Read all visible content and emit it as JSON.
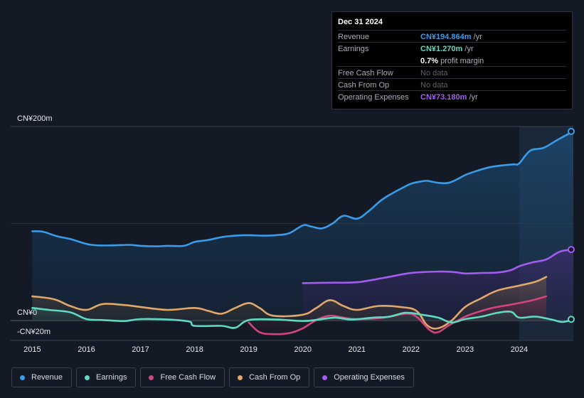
{
  "tooltip": {
    "date": "Dec 31 2024",
    "rows": [
      {
        "label": "Revenue",
        "value": "CN¥194.864m",
        "suffix": " /yr",
        "color": "#3b9be8"
      },
      {
        "label": "Earnings",
        "value": "CN¥1.270m",
        "suffix": " /yr",
        "color": "#5fd9c2"
      },
      {
        "label": "",
        "value": "0.7%",
        "suffix": " profit margin",
        "color": "#ffffff"
      },
      {
        "label": "Free Cash Flow",
        "value": "No data",
        "suffix": "",
        "color": "#5d636c"
      },
      {
        "label": "Cash From Op",
        "value": "No data",
        "suffix": "",
        "color": "#5d636c"
      },
      {
        "label": "Operating Expenses",
        "value": "CN¥73.180m",
        "suffix": " /yr",
        "color": "#a35cf0"
      }
    ]
  },
  "legend": [
    {
      "label": "Revenue",
      "color": "#3b9be8"
    },
    {
      "label": "Earnings",
      "color": "#5fd9c2"
    },
    {
      "label": "Free Cash Flow",
      "color": "#d2457c"
    },
    {
      "label": "Cash From Op",
      "color": "#e0a86a"
    },
    {
      "label": "Operating Expenses",
      "color": "#a35cf0"
    }
  ],
  "chart_data": {
    "type": "area",
    "title": "",
    "xlabel": "",
    "ylabel": "",
    "currency": "CN¥",
    "y_tick_labels": [
      "CN¥200m",
      "CN¥0",
      "-CN¥20m"
    ],
    "ylim": [
      -20,
      200
    ],
    "xlim": [
      2014.6,
      2025.0
    ],
    "x_tick_labels": [
      "2015",
      "2016",
      "2017",
      "2018",
      "2019",
      "2020",
      "2021",
      "2022",
      "2023",
      "2024"
    ],
    "x_ticks": [
      2015,
      2016,
      2017,
      2018,
      2019,
      2020,
      2021,
      2022,
      2023,
      2024
    ],
    "highlight_from": 2024.0,
    "series": [
      {
        "name": "Revenue",
        "color": "#3b9be8",
        "points": [
          [
            2015.0,
            92
          ],
          [
            2015.2,
            91.5
          ],
          [
            2015.45,
            87
          ],
          [
            2015.7,
            84
          ],
          [
            2016.0,
            79
          ],
          [
            2016.2,
            77.5
          ],
          [
            2016.5,
            77.5
          ],
          [
            2016.8,
            78
          ],
          [
            2017.0,
            77
          ],
          [
            2017.3,
            76.5
          ],
          [
            2017.5,
            77
          ],
          [
            2017.8,
            77
          ],
          [
            2018.0,
            81
          ],
          [
            2018.25,
            83
          ],
          [
            2018.5,
            86
          ],
          [
            2018.75,
            87.5
          ],
          [
            2019.0,
            88
          ],
          [
            2019.25,
            87.5
          ],
          [
            2019.5,
            88
          ],
          [
            2019.75,
            90
          ],
          [
            2020.0,
            98
          ],
          [
            2020.15,
            97
          ],
          [
            2020.35,
            95
          ],
          [
            2020.55,
            100
          ],
          [
            2020.75,
            108
          ],
          [
            2021.0,
            105
          ],
          [
            2021.2,
            112
          ],
          [
            2021.45,
            124
          ],
          [
            2021.65,
            131
          ],
          [
            2021.85,
            137
          ],
          [
            2022.0,
            141
          ],
          [
            2022.15,
            143
          ],
          [
            2022.3,
            144
          ],
          [
            2022.5,
            142
          ],
          [
            2022.7,
            142
          ],
          [
            2022.9,
            147
          ],
          [
            2023.0,
            150
          ],
          [
            2023.2,
            154
          ],
          [
            2023.45,
            158
          ],
          [
            2023.7,
            160
          ],
          [
            2023.9,
            161
          ],
          [
            2024.0,
            162
          ],
          [
            2024.2,
            175
          ],
          [
            2024.45,
            178
          ],
          [
            2024.7,
            186
          ],
          [
            2025.0,
            195
          ]
        ]
      },
      {
        "name": "Earnings",
        "color": "#5fd9c2",
        "points": [
          [
            2015.0,
            13
          ],
          [
            2015.3,
            11
          ],
          [
            2015.7,
            8.5
          ],
          [
            2016.0,
            1.5
          ],
          [
            2016.3,
            0.5
          ],
          [
            2016.7,
            -0.5
          ],
          [
            2017.0,
            1.5
          ],
          [
            2017.5,
            1
          ],
          [
            2017.9,
            -1
          ],
          [
            2018.0,
            -5.5
          ],
          [
            2018.5,
            -5.5
          ],
          [
            2018.75,
            -7.5
          ],
          [
            2019.0,
            0.5
          ],
          [
            2019.5,
            1
          ],
          [
            2020.0,
            -0.5
          ],
          [
            2020.3,
            1
          ],
          [
            2020.6,
            3
          ],
          [
            2020.9,
            1
          ],
          [
            2021.3,
            3
          ],
          [
            2021.6,
            4
          ],
          [
            2021.9,
            8
          ],
          [
            2022.2,
            6
          ],
          [
            2022.5,
            3
          ],
          [
            2022.75,
            -2
          ],
          [
            2023.0,
            1.5
          ],
          [
            2023.3,
            4
          ],
          [
            2023.6,
            8
          ],
          [
            2023.85,
            9
          ],
          [
            2024.0,
            3
          ],
          [
            2024.3,
            4
          ],
          [
            2024.6,
            1
          ],
          [
            2024.8,
            -1.5
          ],
          [
            2025.0,
            1.3
          ]
        ]
      },
      {
        "name": "Free Cash Flow",
        "color": "#d2457c",
        "points": [
          [
            2019.0,
            -2
          ],
          [
            2019.2,
            -12
          ],
          [
            2019.45,
            -14
          ],
          [
            2019.75,
            -13
          ],
          [
            2020.0,
            -8
          ],
          [
            2020.25,
            0.5
          ],
          [
            2020.5,
            5
          ],
          [
            2020.75,
            3
          ],
          [
            2021.0,
            1.5
          ],
          [
            2021.5,
            3
          ],
          [
            2021.9,
            7
          ],
          [
            2022.1,
            4
          ],
          [
            2022.35,
            -10
          ],
          [
            2022.5,
            -12
          ],
          [
            2022.7,
            -5
          ],
          [
            2023.0,
            4
          ],
          [
            2023.25,
            9
          ],
          [
            2023.5,
            13
          ],
          [
            2023.8,
            16
          ],
          [
            2024.0,
            18
          ],
          [
            2024.25,
            21
          ],
          [
            2024.5,
            25
          ]
        ]
      },
      {
        "name": "Cash From Op",
        "color": "#e0a86a",
        "points": [
          [
            2015.0,
            25
          ],
          [
            2015.4,
            22
          ],
          [
            2015.7,
            15
          ],
          [
            2016.0,
            11
          ],
          [
            2016.3,
            17
          ],
          [
            2016.7,
            16
          ],
          [
            2017.0,
            14
          ],
          [
            2017.5,
            11
          ],
          [
            2018.0,
            13
          ],
          [
            2018.25,
            10
          ],
          [
            2018.5,
            7
          ],
          [
            2018.75,
            13
          ],
          [
            2019.0,
            18
          ],
          [
            2019.2,
            13
          ],
          [
            2019.45,
            5
          ],
          [
            2020.0,
            6
          ],
          [
            2020.25,
            13
          ],
          [
            2020.5,
            21
          ],
          [
            2020.75,
            15
          ],
          [
            2021.0,
            11
          ],
          [
            2021.4,
            15
          ],
          [
            2021.8,
            14
          ],
          [
            2022.1,
            10
          ],
          [
            2022.3,
            -5
          ],
          [
            2022.5,
            -8
          ],
          [
            2022.75,
            0
          ],
          [
            2023.0,
            14
          ],
          [
            2023.3,
            23
          ],
          [
            2023.6,
            31
          ],
          [
            2024.0,
            36
          ],
          [
            2024.3,
            40
          ],
          [
            2024.5,
            45
          ]
        ]
      },
      {
        "name": "Operating Expenses",
        "color": "#a35cf0",
        "points": [
          [
            2020.0,
            38.5
          ],
          [
            2020.5,
            39
          ],
          [
            2021.0,
            39.5
          ],
          [
            2021.5,
            44
          ],
          [
            2022.0,
            49
          ],
          [
            2022.5,
            50.5
          ],
          [
            2022.8,
            50
          ],
          [
            2023.0,
            48.5
          ],
          [
            2023.3,
            49
          ],
          [
            2023.6,
            49.5
          ],
          [
            2023.85,
            52
          ],
          [
            2024.0,
            56
          ],
          [
            2024.25,
            60
          ],
          [
            2024.5,
            63
          ],
          [
            2024.75,
            71
          ],
          [
            2025.0,
            73.2
          ]
        ]
      }
    ]
  }
}
